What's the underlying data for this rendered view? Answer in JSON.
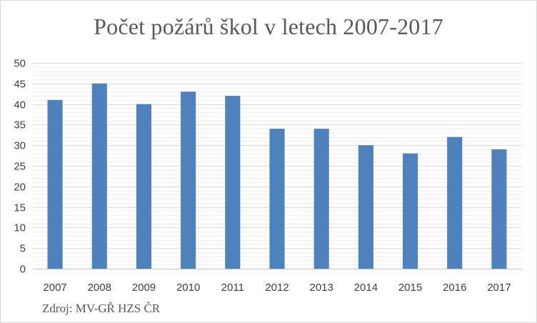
{
  "chart_data": {
    "type": "bar",
    "title": "Počet požárů škol v letech 2007-2017",
    "source": "Zdroj: MV-GŘ HZS ČR",
    "categories": [
      "2007",
      "2008",
      "2009",
      "2010",
      "2011",
      "2012",
      "2013",
      "2014",
      "2015",
      "2016",
      "2017"
    ],
    "values": [
      41,
      45,
      40,
      43,
      42,
      34,
      34,
      30,
      28,
      32,
      29
    ],
    "ylim": [
      0,
      50
    ],
    "yticks": [
      0,
      5,
      10,
      15,
      20,
      25,
      30,
      35,
      40,
      45,
      50
    ],
    "xlabel": "",
    "ylabel": "",
    "grid": true,
    "minor_grid": true,
    "legend": "none",
    "colors": {
      "bar": "#4f81bd",
      "grid_major": "#d9d9d9",
      "grid_minor": "#efefef",
      "axis": "#bfbfbf",
      "text": "#595959"
    }
  }
}
